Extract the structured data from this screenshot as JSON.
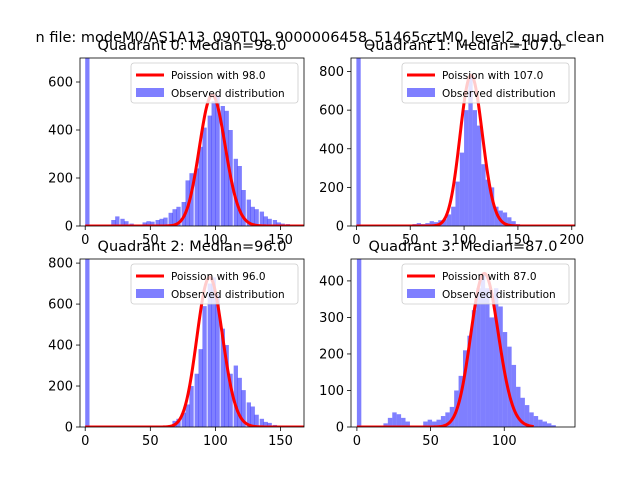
{
  "suptitle": "n file: modeM0/AS1A13_090T01_9000006458_51465cztM0_level2_quad_clean",
  "colors": {
    "poisson": "#ff0000",
    "observed": "#0000ff"
  },
  "chart_data": [
    {
      "type": "bar",
      "title": "Quadrant 0: Median=98.0",
      "xlim": [
        -4,
        168
      ],
      "ylim": [
        0,
        700
      ],
      "xticks": [
        0,
        50,
        100,
        150
      ],
      "yticks": [
        0,
        200,
        400,
        600
      ],
      "legend": {
        "position": "top-right",
        "entries": [
          "Poission with 98.0",
          "Observed distribution"
        ]
      },
      "median": 98,
      "hist": {
        "bin_width": 3.3,
        "bins": [
          [
            0,
            700
          ],
          [
            20,
            25
          ],
          [
            23,
            40
          ],
          [
            27,
            30
          ],
          [
            30,
            20
          ],
          [
            34,
            10
          ],
          [
            44,
            15
          ],
          [
            47,
            20
          ],
          [
            50,
            18
          ],
          [
            54,
            25
          ],
          [
            57,
            30
          ],
          [
            60,
            35
          ],
          [
            64,
            55
          ],
          [
            67,
            70
          ],
          [
            70,
            80
          ],
          [
            74,
            100
          ],
          [
            77,
            190
          ],
          [
            80,
            220
          ],
          [
            84,
            240
          ],
          [
            87,
            330
          ],
          [
            90,
            410
          ],
          [
            94,
            460
          ],
          [
            97,
            520
          ],
          [
            100,
            545
          ],
          [
            104,
            500
          ],
          [
            107,
            480
          ],
          [
            110,
            400
          ],
          [
            114,
            280
          ],
          [
            117,
            250
          ],
          [
            120,
            150
          ],
          [
            124,
            110
          ],
          [
            127,
            80
          ],
          [
            130,
            70
          ],
          [
            134,
            60
          ],
          [
            137,
            40
          ],
          [
            140,
            30
          ],
          [
            144,
            25
          ],
          [
            147,
            15
          ],
          [
            150,
            10
          ],
          [
            154,
            8
          ],
          [
            157,
            5
          ]
        ]
      }
    },
    {
      "type": "bar",
      "title": "Quadrant 1: Median=107.0",
      "xlim": [
        -5,
        203
      ],
      "ylim": [
        0,
        870
      ],
      "xticks": [
        0,
        50,
        100,
        150,
        200
      ],
      "yticks": [
        0,
        200,
        400,
        600,
        800
      ],
      "legend": {
        "position": "top-right",
        "entries": [
          "Poission with 107.0",
          "Observed distribution"
        ]
      },
      "median": 107,
      "hist": {
        "bin_width": 4,
        "bins": [
          [
            0,
            870
          ],
          [
            40,
            5
          ],
          [
            52,
            10
          ],
          [
            56,
            15
          ],
          [
            60,
            10
          ],
          [
            64,
            15
          ],
          [
            68,
            25
          ],
          [
            72,
            20
          ],
          [
            76,
            30
          ],
          [
            80,
            35
          ],
          [
            84,
            60
          ],
          [
            88,
            100
          ],
          [
            92,
            230
          ],
          [
            96,
            380
          ],
          [
            100,
            600
          ],
          [
            104,
            780
          ],
          [
            108,
            600
          ],
          [
            112,
            520
          ],
          [
            116,
            320
          ],
          [
            120,
            240
          ],
          [
            124,
            200
          ],
          [
            128,
            100
          ],
          [
            132,
            80
          ],
          [
            136,
            70
          ],
          [
            140,
            45
          ],
          [
            144,
            25
          ],
          [
            148,
            10
          ],
          [
            152,
            5
          ]
        ]
      }
    },
    {
      "type": "bar",
      "title": "Quadrant 2: Median=96.0",
      "xlim": [
        -4,
        168
      ],
      "ylim": [
        0,
        820
      ],
      "xticks": [
        0,
        50,
        100,
        150
      ],
      "yticks": [
        0,
        200,
        400,
        600,
        800
      ],
      "legend": {
        "position": "top-right",
        "entries": [
          "Poission with 96.0",
          "Observed distribution"
        ]
      },
      "median": 96,
      "hist": {
        "bin_width": 3.3,
        "bins": [
          [
            0,
            820
          ],
          [
            64,
            10
          ],
          [
            67,
            30
          ],
          [
            70,
            40
          ],
          [
            74,
            70
          ],
          [
            77,
            110
          ],
          [
            80,
            200
          ],
          [
            84,
            260
          ],
          [
            87,
            380
          ],
          [
            90,
            590
          ],
          [
            94,
            700
          ],
          [
            97,
            730
          ],
          [
            100,
            650
          ],
          [
            104,
            480
          ],
          [
            107,
            400
          ],
          [
            110,
            260
          ],
          [
            114,
            300
          ],
          [
            117,
            240
          ],
          [
            120,
            180
          ],
          [
            124,
            120
          ],
          [
            127,
            100
          ],
          [
            130,
            60
          ],
          [
            134,
            40
          ],
          [
            137,
            25
          ],
          [
            140,
            20
          ],
          [
            144,
            10
          ],
          [
            147,
            5
          ]
        ]
      }
    },
    {
      "type": "bar",
      "title": "Quadrant 3: Median=87.0",
      "xlim": [
        -4,
        148
      ],
      "ylim": [
        0,
        460
      ],
      "xticks": [
        0,
        50,
        100
      ],
      "yticks": [
        0,
        100,
        200,
        300,
        400
      ],
      "legend": {
        "position": "top-right",
        "entries": [
          "Poission with 87.0",
          "Observed distribution"
        ]
      },
      "median": 87,
      "hist": {
        "bin_width": 3,
        "bins": [
          [
            0,
            460
          ],
          [
            18,
            10
          ],
          [
            21,
            25
          ],
          [
            24,
            40
          ],
          [
            27,
            35
          ],
          [
            30,
            25
          ],
          [
            33,
            15
          ],
          [
            45,
            15
          ],
          [
            48,
            20
          ],
          [
            51,
            15
          ],
          [
            54,
            20
          ],
          [
            57,
            30
          ],
          [
            60,
            40
          ],
          [
            63,
            55
          ],
          [
            66,
            100
          ],
          [
            69,
            140
          ],
          [
            72,
            210
          ],
          [
            75,
            250
          ],
          [
            78,
            320
          ],
          [
            81,
            380
          ],
          [
            84,
            420
          ],
          [
            87,
            380
          ],
          [
            90,
            300
          ],
          [
            93,
            380
          ],
          [
            96,
            330
          ],
          [
            99,
            260
          ],
          [
            102,
            220
          ],
          [
            105,
            170
          ],
          [
            108,
            110
          ],
          [
            111,
            80
          ],
          [
            114,
            60
          ],
          [
            117,
            40
          ],
          [
            120,
            30
          ],
          [
            123,
            20
          ],
          [
            126,
            15
          ],
          [
            129,
            10
          ],
          [
            132,
            5
          ]
        ]
      }
    }
  ]
}
